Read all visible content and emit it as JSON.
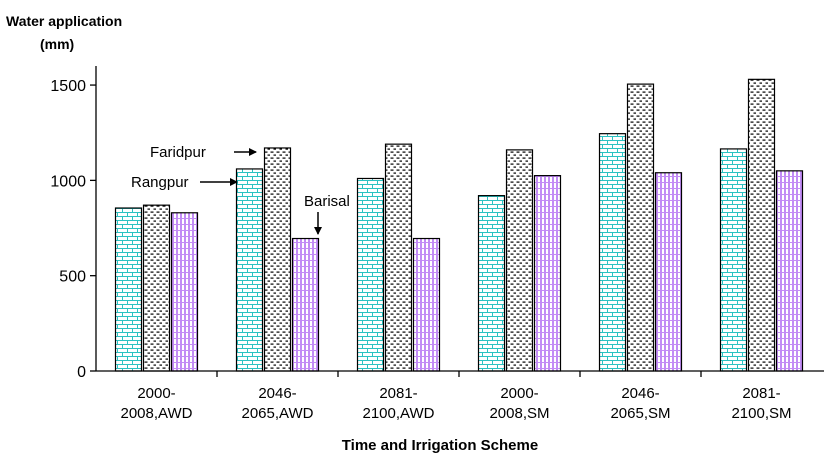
{
  "chart_data": {
    "type": "bar",
    "title": "",
    "ylabel_line1": "Water application",
    "ylabel_line2": "(mm)",
    "xlabel": "Time and Irrigation Scheme",
    "ylim": [
      0,
      1600
    ],
    "yticks": [
      0,
      500,
      1000,
      1500
    ],
    "grid": false,
    "legend": "none (inline annotations with arrows)",
    "categories": [
      [
        "2000-",
        "2008,AWD"
      ],
      [
        "2046-",
        "2065,AWD"
      ],
      [
        "2081-",
        "2100,AWD"
      ],
      [
        "2000-",
        "2008,SM"
      ],
      [
        "2046-",
        "2065,SM"
      ],
      [
        "2081-",
        "2100,SM"
      ]
    ],
    "series": [
      {
        "name": "Rangpur",
        "pattern": "brick",
        "color": "#33cccc",
        "values": [
          855,
          1060,
          1010,
          920,
          1245,
          1165
        ]
      },
      {
        "name": "Faridpur",
        "pattern": "dots",
        "color": "#000000",
        "values": [
          870,
          1170,
          1190,
          1160,
          1505,
          1530
        ]
      },
      {
        "name": "Barisal",
        "pattern": "vertical-hatch",
        "color": "#cc99ff",
        "values": [
          830,
          695,
          695,
          1025,
          1040,
          1050
        ]
      }
    ],
    "annotations": [
      {
        "text": "Faridpur",
        "points_to": "Faridpur, 2046-2065,AWD"
      },
      {
        "text": "Rangpur",
        "points_to": "Rangpur, 2046-2065,AWD"
      },
      {
        "text": "Barisal",
        "points_to": "Barisal, 2046-2065,AWD"
      }
    ]
  }
}
